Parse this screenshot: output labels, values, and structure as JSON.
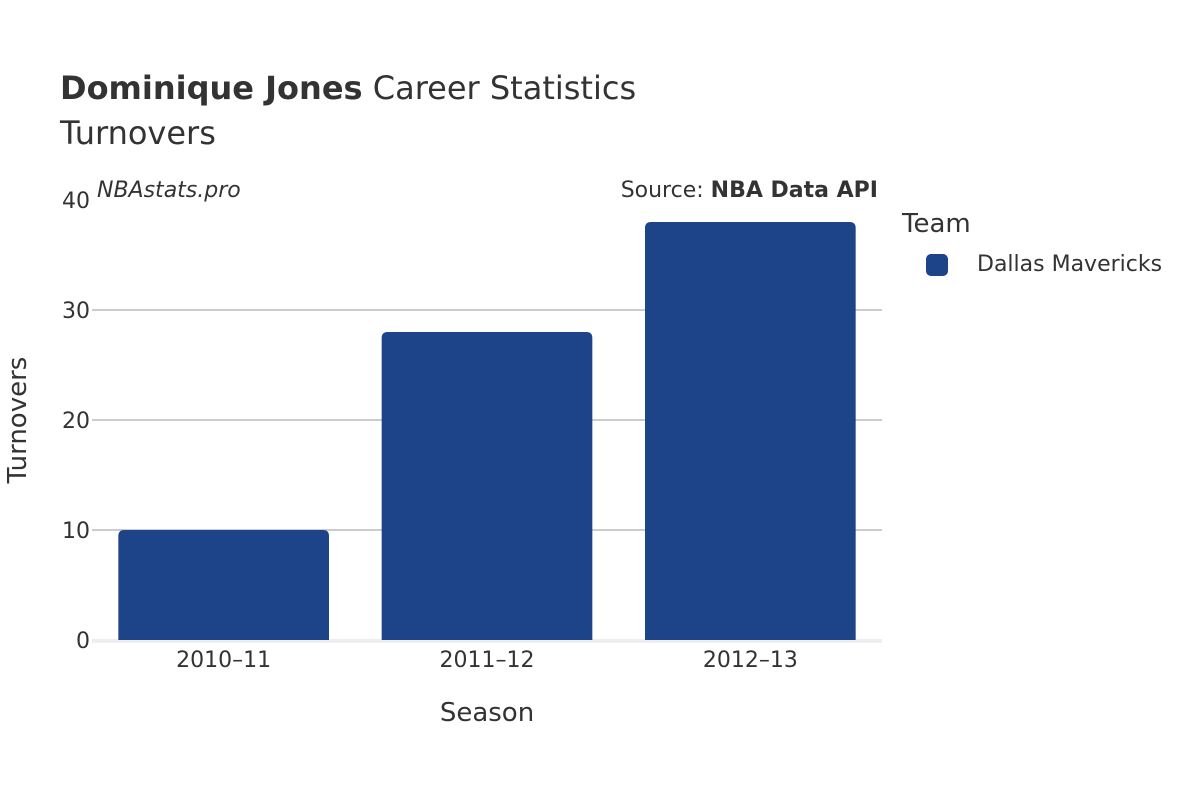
{
  "header": {
    "title_bold": "Dominique Jones",
    "title_rest": " Career Statistics",
    "subtitle": "Turnovers"
  },
  "watermark": "NBAstats.pro",
  "source": {
    "prefix": "Source: ",
    "name": "NBA Data API"
  },
  "legend": {
    "title": "Team",
    "items": [
      {
        "label": "Dallas Mavericks",
        "color": "#1d4389"
      }
    ]
  },
  "chart_data": {
    "type": "bar",
    "categories": [
      "2010–11",
      "2011–12",
      "2012–13"
    ],
    "series": [
      {
        "name": "Dallas Mavericks",
        "values": [
          10,
          28,
          38
        ]
      }
    ],
    "xlabel": "Season",
    "ylabel": "Turnovers",
    "ylim": [
      0,
      40
    ],
    "yticks": [
      0,
      10,
      20,
      30,
      40
    ],
    "grid": true,
    "legend_position": "right",
    "colors": {
      "bar": "#1d4389",
      "grid": "#bbbbbb",
      "baseline": "#eeeeee"
    }
  }
}
